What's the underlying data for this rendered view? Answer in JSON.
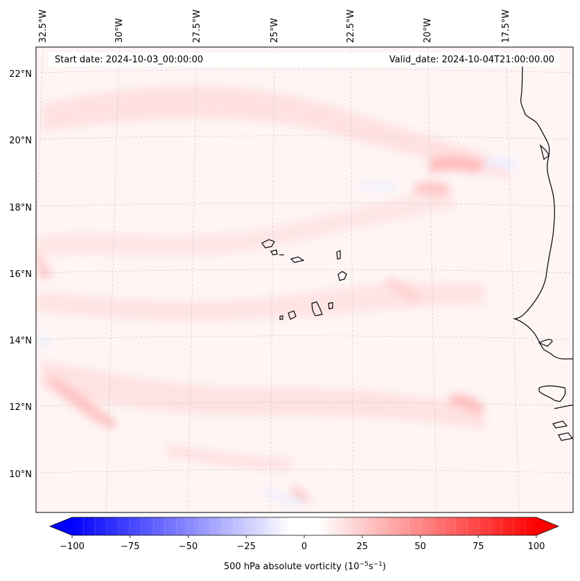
{
  "map": {
    "header": {
      "start": "Start date: 2024-10-03_00:00:00",
      "valid": "Valid_date: 2024-10-04T21:00:00.00"
    },
    "lon_labels": [
      "32.5°W",
      "30°W",
      "27.5°W",
      "25°W",
      "22.5°W",
      "20°W",
      "17.5°W"
    ],
    "lat_labels": [
      "22°N",
      "20°N",
      "18°N",
      "16°N",
      "14°N",
      "12°N",
      "10°N"
    ],
    "colorbar": {
      "min": -100,
      "max": 100,
      "ticks": [
        "−100",
        "−75",
        "−50",
        "−25",
        "0",
        "25",
        "50",
        "75",
        "100"
      ],
      "title": "500 hPa absolute vorticity (10",
      "title_exp1": "−5",
      "title_mid": "s",
      "title_exp2": "−1",
      "title_end": ")",
      "colors": {
        "negative": "#0000ff",
        "neutral": "#ffffff",
        "positive": "#ff0000"
      }
    },
    "field_colors": {
      "background": "#fff5f5",
      "light": "#ffe4e4",
      "medium": "#ffcdcd",
      "strong": "#ffb0b0",
      "negative": "#eef0ff"
    },
    "coastline_color": "#000000"
  }
}
